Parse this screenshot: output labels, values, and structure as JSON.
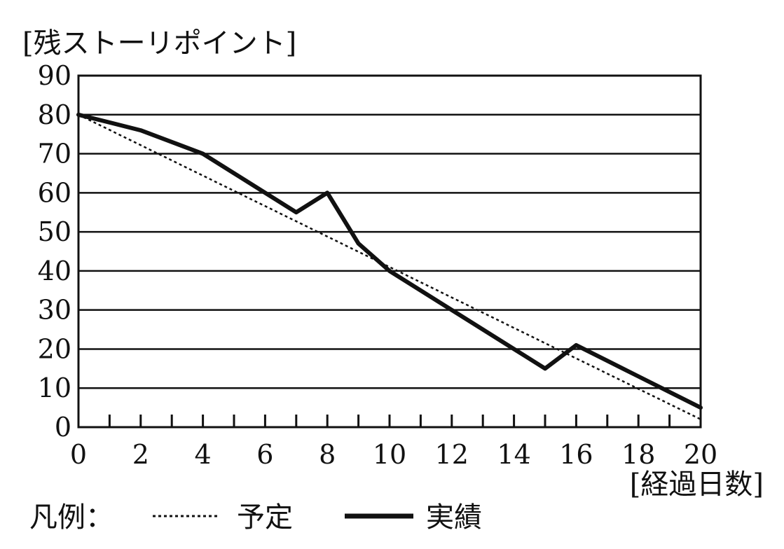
{
  "chart_data": {
    "type": "line",
    "title": "",
    "ylabel": "[残ストーリポイント]",
    "xlabel": "[経過日数]",
    "xlim": [
      0,
      20
    ],
    "ylim": [
      0,
      90
    ],
    "xticks": [
      0,
      2,
      4,
      6,
      8,
      10,
      12,
      14,
      16,
      18,
      20
    ],
    "yticks": [
      0,
      10,
      20,
      30,
      40,
      50,
      60,
      70,
      80,
      90
    ],
    "minor_xticks_every": 1,
    "grid": {
      "horizontal": true,
      "vertical": false
    },
    "legend_placement": "bottom-left",
    "legend_title": "凡例：",
    "series": [
      {
        "name": "予定",
        "style": "dotted",
        "color": "#111111",
        "points": [
          [
            0,
            80
          ],
          [
            20,
            2
          ]
        ]
      },
      {
        "name": "実績",
        "style": "solid-thick",
        "color": "#111111",
        "points": [
          [
            0,
            80
          ],
          [
            1,
            78
          ],
          [
            2,
            76
          ],
          [
            3,
            73
          ],
          [
            4,
            70
          ],
          [
            5,
            65
          ],
          [
            6,
            60
          ],
          [
            7,
            55
          ],
          [
            8,
            60
          ],
          [
            9,
            47
          ],
          [
            10,
            40
          ],
          [
            11,
            35
          ],
          [
            12,
            30
          ],
          [
            13,
            25
          ],
          [
            14,
            20
          ],
          [
            15,
            15
          ],
          [
            16,
            21
          ],
          [
            17,
            17
          ],
          [
            18,
            13
          ],
          [
            19,
            9
          ],
          [
            20,
            5
          ]
        ]
      }
    ]
  }
}
